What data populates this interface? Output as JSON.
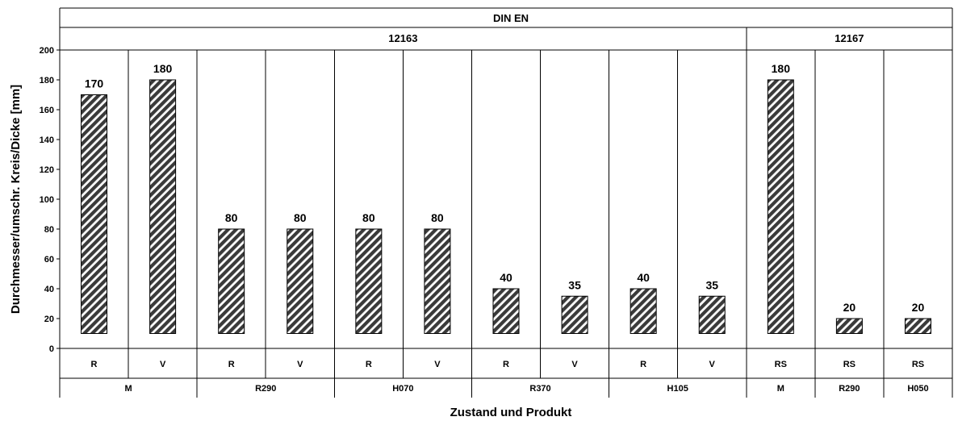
{
  "chart_data": {
    "type": "bar",
    "xlabel": "Zustand und Produkt",
    "ylabel": "Durchmesser/umschr. Kreis/Dicke [mm]",
    "ylim": [
      0,
      200
    ],
    "yticks": [
      "0",
      "20",
      "40",
      "60",
      "80",
      "100",
      "120",
      "140",
      "160",
      "180",
      "200"
    ],
    "header_top": "DIN EN",
    "standards": [
      {
        "label": "12163",
        "span": 10
      },
      {
        "label": "12167",
        "span": 3
      }
    ],
    "states": [
      "R",
      "V",
      "R",
      "V",
      "R",
      "V",
      "R",
      "V",
      "R",
      "V",
      "RS",
      "RS",
      "RS"
    ],
    "products": [
      {
        "label": "M",
        "span": 2
      },
      {
        "label": "R290",
        "span": 2
      },
      {
        "label": "H070",
        "span": 2
      },
      {
        "label": "R370",
        "span": 2
      },
      {
        "label": "H105",
        "span": 2
      },
      {
        "label": "M",
        "span": 1
      },
      {
        "label": "R290",
        "span": 1
      },
      {
        "label": "H050",
        "span": 1
      }
    ],
    "bars": [
      {
        "low": 10,
        "high": 170,
        "label": "170"
      },
      {
        "low": 10,
        "high": 180,
        "label": "180"
      },
      {
        "low": 10,
        "high": 80,
        "label": "80"
      },
      {
        "low": 10,
        "high": 80,
        "label": "80"
      },
      {
        "low": 10,
        "high": 80,
        "label": "80"
      },
      {
        "low": 10,
        "high": 80,
        "label": "80"
      },
      {
        "low": 10,
        "high": 40,
        "label": "40"
      },
      {
        "low": 10,
        "high": 35,
        "label": "35"
      },
      {
        "low": 10,
        "high": 40,
        "label": "40"
      },
      {
        "low": 10,
        "high": 35,
        "label": "35"
      },
      {
        "low": 10,
        "high": 180,
        "label": "180"
      },
      {
        "low": 10,
        "high": 20,
        "label": "20"
      },
      {
        "low": 10,
        "high": 20,
        "label": "20"
      }
    ],
    "grid": false
  },
  "colors": {
    "bar_stripe": "#3a3a3a",
    "bar_background": "#ffffff",
    "lines": "#000000"
  }
}
